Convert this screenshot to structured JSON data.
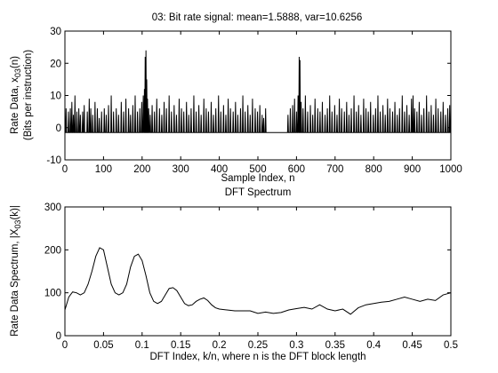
{
  "chart_data": [
    {
      "type": "line",
      "title": "03: Bit rate signal: mean=1.5888, var=10.6256",
      "xlabel": "Sample Index, n",
      "ylabel_line1": "Rate Data, x",
      "ylabel_sub": "03",
      "ylabel_tail": "(n)",
      "ylabel_line2": "(Bits per instruction)",
      "xlim": [
        0,
        1000
      ],
      "ylim": [
        -10,
        30
      ],
      "xticks": [
        0,
        100,
        200,
        300,
        400,
        500,
        600,
        700,
        800,
        900,
        1000
      ],
      "yticks": [
        -10,
        0,
        10,
        20,
        30
      ],
      "grid": false,
      "baseline": -1.5,
      "spikes": [
        [
          3,
          6
        ],
        [
          9,
          5
        ],
        [
          14,
          6
        ],
        [
          18,
          8
        ],
        [
          22,
          4
        ],
        [
          26,
          10
        ],
        [
          31,
          5
        ],
        [
          36,
          6
        ],
        [
          40,
          4
        ],
        [
          46,
          5
        ],
        [
          50,
          7
        ],
        [
          58,
          5
        ],
        [
          63,
          9
        ],
        [
          67,
          6
        ],
        [
          72,
          4
        ],
        [
          78,
          8
        ],
        [
          84,
          6
        ],
        [
          89,
          3
        ],
        [
          95,
          5
        ],
        [
          102,
          6
        ],
        [
          107,
          4
        ],
        [
          113,
          7
        ],
        [
          120,
          10
        ],
        [
          126,
          5
        ],
        [
          133,
          6
        ],
        [
          139,
          4
        ],
        [
          146,
          8
        ],
        [
          152,
          5
        ],
        [
          158,
          9
        ],
        [
          165,
          6
        ],
        [
          170,
          4
        ],
        [
          176,
          7
        ],
        [
          182,
          10
        ],
        [
          188,
          5
        ],
        [
          194,
          6
        ],
        [
          199,
          8
        ],
        [
          203,
          10
        ],
        [
          206,
          12
        ],
        [
          208,
          22
        ],
        [
          210,
          24
        ],
        [
          212,
          15
        ],
        [
          214,
          9
        ],
        [
          217,
          6
        ],
        [
          221,
          4
        ],
        [
          226,
          7
        ],
        [
          232,
          5
        ],
        [
          238,
          9
        ],
        [
          245,
          6
        ],
        [
          251,
          4
        ],
        [
          257,
          8
        ],
        [
          263,
          6
        ],
        [
          270,
          10
        ],
        [
          276,
          5
        ],
        [
          283,
          7
        ],
        [
          289,
          4
        ],
        [
          296,
          9
        ],
        [
          302,
          6
        ],
        [
          308,
          5
        ],
        [
          315,
          8
        ],
        [
          321,
          4
        ],
        [
          327,
          6
        ],
        [
          334,
          10
        ],
        [
          340,
          5
        ],
        [
          347,
          7
        ],
        [
          353,
          4
        ],
        [
          360,
          9
        ],
        [
          366,
          6
        ],
        [
          372,
          5
        ],
        [
          379,
          8
        ],
        [
          385,
          4
        ],
        [
          391,
          6
        ],
        [
          398,
          10
        ],
        [
          404,
          5
        ],
        [
          411,
          7
        ],
        [
          417,
          4
        ],
        [
          423,
          9
        ],
        [
          429,
          6
        ],
        [
          436,
          5
        ],
        [
          442,
          8
        ],
        [
          448,
          4
        ],
        [
          455,
          6
        ],
        [
          461,
          10
        ],
        [
          467,
          5
        ],
        [
          474,
          7
        ],
        [
          480,
          4
        ],
        [
          486,
          9
        ],
        [
          493,
          6
        ],
        [
          499,
          5
        ],
        [
          505,
          7
        ],
        [
          511,
          4
        ],
        [
          515,
          3
        ],
        [
          520,
          6
        ],
        [
          578,
          4
        ],
        [
          584,
          6
        ],
        [
          590,
          7
        ],
        [
          595,
          9
        ],
        [
          600,
          5
        ],
        [
          604,
          10
        ],
        [
          607,
          22
        ],
        [
          609,
          21
        ],
        [
          612,
          8
        ],
        [
          617,
          6
        ],
        [
          623,
          10
        ],
        [
          629,
          5
        ],
        [
          636,
          7
        ],
        [
          642,
          4
        ],
        [
          648,
          9
        ],
        [
          655,
          6
        ],
        [
          661,
          5
        ],
        [
          667,
          8
        ],
        [
          674,
          4
        ],
        [
          680,
          6
        ],
        [
          686,
          10
        ],
        [
          692,
          5
        ],
        [
          699,
          7
        ],
        [
          705,
          4
        ],
        [
          711,
          9
        ],
        [
          717,
          6
        ],
        [
          724,
          5
        ],
        [
          730,
          8
        ],
        [
          736,
          4
        ],
        [
          742,
          6
        ],
        [
          749,
          10
        ],
        [
          755,
          5
        ],
        [
          761,
          7
        ],
        [
          767,
          4
        ],
        [
          774,
          9
        ],
        [
          780,
          6
        ],
        [
          786,
          5
        ],
        [
          792,
          8
        ],
        [
          799,
          4
        ],
        [
          805,
          6
        ],
        [
          811,
          10
        ],
        [
          817,
          5
        ],
        [
          824,
          7
        ],
        [
          830,
          4
        ],
        [
          836,
          9
        ],
        [
          842,
          6
        ],
        [
          849,
          5
        ],
        [
          855,
          8
        ],
        [
          861,
          4
        ],
        [
          867,
          6
        ],
        [
          874,
          10
        ],
        [
          880,
          5
        ],
        [
          886,
          7
        ],
        [
          892,
          4
        ],
        [
          898,
          9
        ],
        [
          902,
          10
        ],
        [
          906,
          6
        ],
        [
          912,
          5
        ],
        [
          918,
          8
        ],
        [
          924,
          4
        ],
        [
          930,
          6
        ],
        [
          937,
          10
        ],
        [
          943,
          5
        ],
        [
          949,
          7
        ],
        [
          955,
          4
        ],
        [
          961,
          9
        ],
        [
          967,
          6
        ],
        [
          974,
          5
        ],
        [
          980,
          8
        ],
        [
          986,
          4
        ],
        [
          992,
          6
        ],
        [
          997,
          7
        ]
      ]
    },
    {
      "type": "line",
      "title": "DFT Spectrum",
      "xlabel": "DFT Index, k/n, where n is the DFT block length",
      "ylabel_line1": "Rate Data Spectrum, |X",
      "ylabel_sub": "03",
      "ylabel_tail": "(k)|",
      "xlim": [
        0,
        0.5
      ],
      "ylim": [
        0,
        300
      ],
      "xticks": [
        0,
        0.05,
        0.1,
        0.15,
        0.2,
        0.25,
        0.3,
        0.35,
        0.4,
        0.45,
        0.5
      ],
      "yticks": [
        0,
        100,
        200,
        300
      ],
      "grid": false,
      "x": [
        0,
        0.005,
        0.01,
        0.015,
        0.02,
        0.025,
        0.03,
        0.035,
        0.04,
        0.045,
        0.05,
        0.055,
        0.06,
        0.065,
        0.07,
        0.075,
        0.08,
        0.085,
        0.09,
        0.095,
        0.1,
        0.105,
        0.11,
        0.115,
        0.12,
        0.125,
        0.13,
        0.135,
        0.14,
        0.145,
        0.15,
        0.155,
        0.16,
        0.165,
        0.17,
        0.175,
        0.18,
        0.185,
        0.19,
        0.195,
        0.2,
        0.21,
        0.22,
        0.23,
        0.24,
        0.25,
        0.26,
        0.27,
        0.28,
        0.29,
        0.3,
        0.31,
        0.32,
        0.33,
        0.34,
        0.35,
        0.36,
        0.37,
        0.38,
        0.39,
        0.4,
        0.41,
        0.42,
        0.43,
        0.44,
        0.45,
        0.46,
        0.47,
        0.48,
        0.49,
        0.5
      ],
      "y": [
        60,
        90,
        102,
        100,
        95,
        100,
        120,
        150,
        185,
        205,
        200,
        160,
        120,
        100,
        95,
        100,
        120,
        160,
        185,
        190,
        175,
        140,
        100,
        80,
        75,
        80,
        95,
        110,
        112,
        105,
        90,
        75,
        70,
        72,
        80,
        85,
        88,
        82,
        72,
        65,
        62,
        60,
        58,
        58,
        58,
        52,
        55,
        52,
        54,
        60,
        63,
        66,
        62,
        72,
        62,
        58,
        62,
        50,
        65,
        72,
        75,
        78,
        80,
        85,
        90,
        85,
        80,
        85,
        82,
        95,
        100
      ]
    }
  ]
}
